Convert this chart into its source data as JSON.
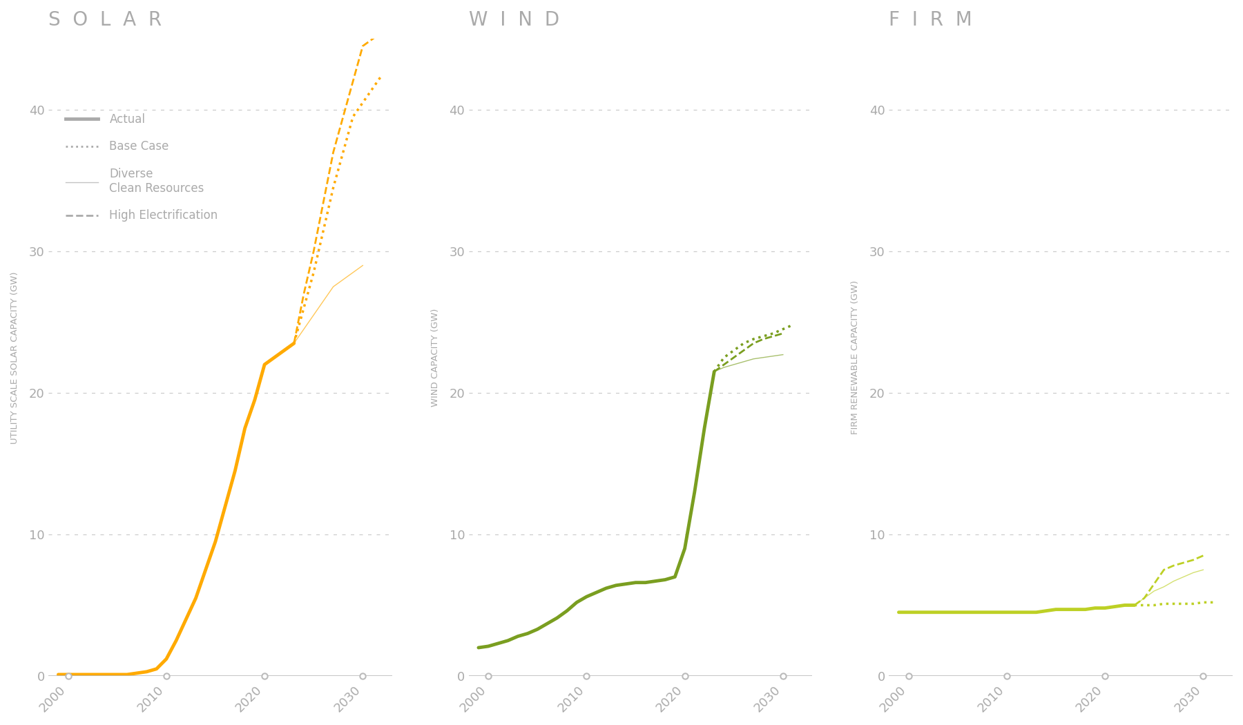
{
  "background_color": "#ffffff",
  "title_color": "#aaaaaa",
  "grid_color": "#cccccc",
  "axis_color": "#bbbbbb",
  "tick_color": "#aaaaaa",
  "panel_titles": [
    "SOLAR",
    "WIND",
    "FIRM"
  ],
  "ylabels": [
    "UTILITY SCALE SOLAR CAPACITY (GW)",
    "WIND CAPACITY (GW)",
    "FIRM RENEWABLE CAPACITY (GW)"
  ],
  "ylim": [
    0,
    45
  ],
  "yticks": [
    0,
    10,
    20,
    30,
    40
  ],
  "xlim": [
    1998,
    2033
  ],
  "xticks": [
    2000,
    2010,
    2020,
    2030
  ],
  "solar_color": "#FFAA00",
  "wind_color": "#7a9e20",
  "firm_color": "#bdd025",
  "legend_color": "#aaaaaa",
  "solar": {
    "actual_x": [
      1999,
      2000,
      2001,
      2002,
      2003,
      2004,
      2005,
      2006,
      2007,
      2008,
      2009,
      2010,
      2011,
      2012,
      2013,
      2014,
      2015,
      2016,
      2017,
      2018,
      2019,
      2020,
      2021,
      2022,
      2023
    ],
    "actual_y": [
      0.1,
      0.1,
      0.1,
      0.1,
      0.1,
      0.1,
      0.1,
      0.1,
      0.2,
      0.3,
      0.5,
      1.2,
      2.5,
      4.0,
      5.5,
      7.5,
      9.5,
      12.0,
      14.5,
      17.5,
      19.5,
      22.0,
      22.5,
      23.0,
      23.5
    ],
    "base_x": [
      2023,
      2024,
      2025,
      2026,
      2027,
      2028,
      2029,
      2030,
      2031,
      2032
    ],
    "base_y": [
      23.5,
      26.0,
      28.5,
      31.5,
      34.5,
      37.0,
      39.5,
      40.5,
      41.5,
      42.5
    ],
    "diverse_x": [
      2023,
      2024,
      2025,
      2026,
      2027,
      2028,
      2029,
      2030
    ],
    "diverse_y": [
      23.5,
      24.5,
      25.5,
      26.5,
      27.5,
      28.0,
      28.5,
      29.0
    ],
    "high_x": [
      2023,
      2024,
      2025,
      2026,
      2027,
      2028,
      2029,
      2030,
      2031,
      2032
    ],
    "high_y": [
      23.5,
      27.0,
      30.0,
      33.5,
      37.0,
      39.5,
      42.0,
      44.5,
      45.0,
      45.5
    ]
  },
  "wind": {
    "actual_x": [
      1999,
      2000,
      2001,
      2002,
      2003,
      2004,
      2005,
      2006,
      2007,
      2008,
      2009,
      2010,
      2011,
      2012,
      2013,
      2014,
      2015,
      2016,
      2017,
      2018,
      2019,
      2020,
      2021,
      2022,
      2023
    ],
    "actual_y": [
      2.0,
      2.1,
      2.3,
      2.5,
      2.8,
      3.0,
      3.3,
      3.7,
      4.1,
      4.6,
      5.2,
      5.6,
      5.9,
      6.2,
      6.4,
      6.5,
      6.6,
      6.6,
      6.7,
      6.8,
      7.0,
      9.0,
      13.0,
      17.5,
      21.5
    ],
    "base_x": [
      2023,
      2024,
      2025,
      2026,
      2027,
      2028,
      2029,
      2030,
      2031
    ],
    "base_y": [
      21.5,
      22.5,
      23.0,
      23.5,
      23.8,
      24.0,
      24.2,
      24.5,
      24.8
    ],
    "diverse_x": [
      2023,
      2024,
      2025,
      2026,
      2027,
      2028,
      2029,
      2030
    ],
    "diverse_y": [
      21.5,
      21.8,
      22.0,
      22.2,
      22.4,
      22.5,
      22.6,
      22.7
    ],
    "high_x": [
      2023,
      2024,
      2025,
      2026,
      2027,
      2028,
      2029,
      2030
    ],
    "high_y": [
      21.5,
      22.0,
      22.5,
      23.0,
      23.5,
      23.8,
      24.0,
      24.2
    ]
  },
  "firm": {
    "actual_x": [
      1999,
      2000,
      2001,
      2002,
      2003,
      2004,
      2005,
      2006,
      2007,
      2008,
      2009,
      2010,
      2011,
      2012,
      2013,
      2014,
      2015,
      2016,
      2017,
      2018,
      2019,
      2020,
      2021,
      2022,
      2023
    ],
    "actual_y": [
      4.5,
      4.5,
      4.5,
      4.5,
      4.5,
      4.5,
      4.5,
      4.5,
      4.5,
      4.5,
      4.5,
      4.5,
      4.5,
      4.5,
      4.5,
      4.6,
      4.7,
      4.7,
      4.7,
      4.7,
      4.8,
      4.8,
      4.9,
      5.0,
      5.0
    ],
    "base_x": [
      2023,
      2024,
      2025,
      2026,
      2027,
      2028,
      2029,
      2030,
      2031
    ],
    "base_y": [
      5.0,
      5.0,
      5.0,
      5.1,
      5.1,
      5.1,
      5.1,
      5.2,
      5.2
    ],
    "diverse_x": [
      2023,
      2024,
      2025,
      2026,
      2027,
      2028,
      2029,
      2030
    ],
    "diverse_y": [
      5.0,
      5.5,
      6.0,
      6.3,
      6.7,
      7.0,
      7.3,
      7.5
    ],
    "high_x": [
      2023,
      2024,
      2025,
      2026,
      2027,
      2028,
      2029,
      2030
    ],
    "high_y": [
      5.0,
      5.5,
      6.5,
      7.5,
      7.8,
      8.0,
      8.2,
      8.5
    ]
  }
}
